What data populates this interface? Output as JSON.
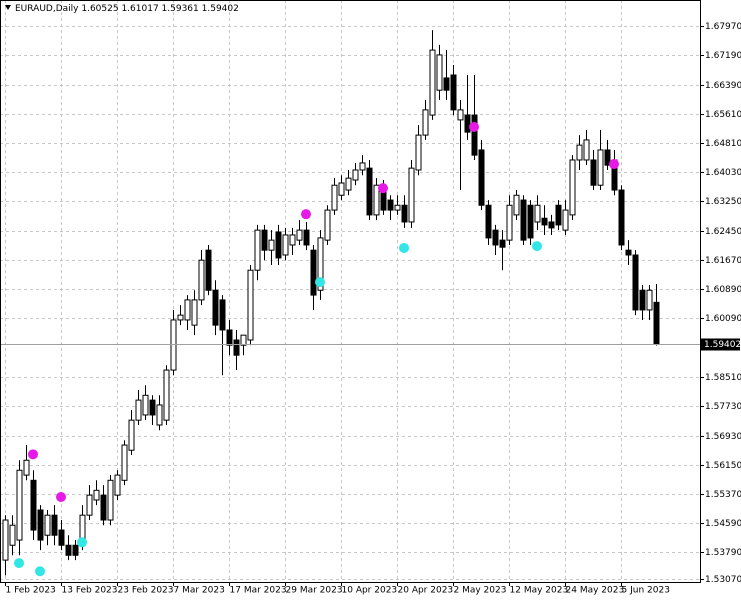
{
  "chart_data": {
    "type": "candlestick",
    "title": "EURAUD,Daily",
    "categories": [
      "1 Feb 2023",
      null,
      null,
      null,
      null,
      null,
      null,
      null,
      "13 Feb 2023",
      null,
      null,
      null,
      null,
      null,
      null,
      null,
      "23 Feb 2023",
      null,
      null,
      null,
      null,
      null,
      null,
      null,
      "7 Mar 2023",
      null,
      null,
      null,
      null,
      null,
      null,
      null,
      "17 Mar 2023",
      null,
      null,
      null,
      null,
      null,
      null,
      null,
      "29 Mar 2023",
      null,
      null,
      null,
      null,
      null,
      null,
      null,
      "10 Apr 2023",
      null,
      null,
      null,
      null,
      null,
      null,
      null,
      "20 Apr 2023",
      null,
      null,
      null,
      null,
      null,
      null,
      null,
      "2 May 2023",
      null,
      null,
      null,
      null,
      null,
      null,
      null,
      "12 May 2023",
      null,
      null,
      null,
      null,
      null,
      null,
      null,
      "24 May 2023",
      null,
      null,
      null,
      null,
      null,
      null,
      null,
      "5 Jun 2023",
      null,
      null,
      null,
      null,
      null
    ],
    "open": [
      1.5358,
      1.5398,
      1.5412,
      1.5587,
      1.5573,
      1.5493,
      1.5425,
      1.5479,
      1.5439,
      1.5398,
      1.5398,
      1.5398,
      1.5479,
      1.552,
      1.5533,
      1.5466,
      1.5533,
      1.5573,
      1.5654,
      1.5735,
      1.5749,
      1.5789,
      1.5722,
      1.5735,
      1.587,
      1.6005,
      1.6005,
      1.5991,
      1.6059,
      1.6193,
      1.6085,
      1.6059,
      1.5978,
      1.5951,
      1.5937,
      1.5951,
      1.6139,
      1.6247,
      1.6193,
      1.6242,
      1.618,
      1.6207,
      1.622,
      1.6247,
      1.6193,
      1.6085,
      1.622,
      1.6301,
      1.6341,
      1.6355,
      1.6382,
      1.6409,
      1.6414,
      1.6288,
      1.6368,
      1.6328,
      1.6301,
      1.6314,
      1.6269,
      1.6409,
      1.6503,
      1.6557,
      1.6624,
      1.6657,
      1.6665,
      1.6544,
      1.6557,
      1.6557,
      1.6463,
      1.6314,
      1.6247,
      1.622,
      1.622,
      1.6288,
      1.6328,
      1.6314,
      1.6269,
      1.6279,
      1.6269,
      1.6314,
      1.6247,
      1.6288,
      1.6436,
      1.6436,
      1.6436,
      1.6368,
      1.6463,
      1.6436,
      1.6355,
      1.6193,
      1.618,
      1.6085,
      1.6032,
      1.60525
    ],
    "high": [
      1.5479,
      1.5479,
      1.5627,
      1.5668,
      1.56,
      1.5506,
      1.5493,
      1.5506,
      1.5466,
      1.5425,
      1.5412,
      1.5506,
      1.556,
      1.5573,
      1.556,
      1.5587,
      1.56,
      1.5681,
      1.5762,
      1.5816,
      1.5829,
      1.5802,
      1.5802,
      1.5883,
      1.6032,
      1.6045,
      1.6072,
      1.6085,
      1.6193,
      1.6207,
      1.6112,
      1.6072,
      1.6005,
      1.5978,
      1.5964,
      1.6153,
      1.6261,
      1.6261,
      1.6247,
      1.6261,
      1.6253,
      1.6253,
      1.6274,
      1.6269,
      1.6207,
      1.6247,
      1.6314,
      1.6387,
      1.6395,
      1.6409,
      1.6428,
      1.6449,
      1.6436,
      1.6387,
      1.6382,
      1.6341,
      1.6341,
      1.6341,
      1.6436,
      1.653,
      1.6598,
      1.6786,
      1.6746,
      1.6732,
      1.6692,
      1.6598,
      1.6665,
      1.6665,
      1.649,
      1.6328,
      1.6261,
      1.6247,
      1.6341,
      1.6355,
      1.6341,
      1.6328,
      1.6341,
      1.6314,
      1.6288,
      1.6328,
      1.6328,
      1.6449,
      1.6503,
      1.6517,
      1.6463,
      1.6517,
      1.649,
      1.6463,
      1.6368,
      1.622,
      1.6193,
      1.6099,
      1.6099,
      1.61017
    ],
    "low": [
      1.5317,
      1.5371,
      1.5371,
      1.5573,
      1.5412,
      1.5385,
      1.5398,
      1.5398,
      1.5385,
      1.5358,
      1.5358,
      1.5385,
      1.5466,
      1.5506,
      1.5452,
      1.5452,
      1.552,
      1.556,
      1.5641,
      1.5722,
      1.5735,
      1.5722,
      1.5708,
      1.5722,
      1.5856,
      1.5991,
      1.5978,
      1.5964,
      1.6045,
      1.6072,
      1.5964,
      1.5856,
      1.591,
      1.587,
      1.591,
      1.5937,
      1.6112,
      1.6166,
      1.6153,
      1.6153,
      1.6166,
      1.618,
      1.6207,
      1.6193,
      1.6032,
      1.6059,
      1.6207,
      1.6288,
      1.6328,
      1.6341,
      1.6368,
      1.6395,
      1.6274,
      1.6274,
      1.6288,
      1.6274,
      1.6288,
      1.6253,
      1.6253,
      1.6395,
      1.649,
      1.6544,
      1.6598,
      1.6598,
      1.6557,
      1.6355,
      1.649,
      1.6436,
      1.6301,
      1.6207,
      1.618,
      1.6139,
      1.6207,
      1.6274,
      1.6207,
      1.6207,
      1.6247,
      1.6234,
      1.6234,
      1.6247,
      1.6234,
      1.6274,
      1.6409,
      1.6422,
      1.6355,
      1.6355,
      1.6409,
      1.6341,
      1.6193,
      1.6153,
      1.6018,
      1.6005,
      1.6005,
      1.59361
    ],
    "close": [
      1.5466,
      1.5452,
      1.56,
      1.5627,
      1.5439,
      1.5412,
      1.5479,
      1.5425,
      1.5398,
      1.5371,
      1.5371,
      1.5479,
      1.5533,
      1.5546,
      1.5466,
      1.5573,
      1.5587,
      1.5668,
      1.5735,
      1.5789,
      1.5802,
      1.5749,
      1.5776,
      1.587,
      1.6005,
      1.6018,
      1.6059,
      1.6059,
      1.6166,
      1.6085,
      1.5991,
      1.5978,
      1.5937,
      1.591,
      1.5964,
      1.6139,
      1.6247,
      1.6193,
      1.622,
      1.6172,
      1.6234,
      1.6234,
      1.6247,
      1.6207,
      1.6072,
      1.6226,
      1.6301,
      1.6368,
      1.6374,
      1.6387,
      1.6409,
      1.6428,
      1.6288,
      1.6368,
      1.6301,
      1.6301,
      1.6314,
      1.6269,
      1.6414,
      1.6503,
      1.6571,
      1.6732,
      1.6719,
      1.6624,
      1.6571,
      1.6571,
      1.6511,
      1.6449,
      1.6314,
      1.6226,
      1.6207,
      1.6201,
      1.6314,
      1.6341,
      1.622,
      1.6226,
      1.6314,
      1.6261,
      1.6253,
      1.6261,
      1.6301,
      1.6436,
      1.6476,
      1.649,
      1.6368,
      1.6463,
      1.6422,
      1.6355,
      1.6207,
      1.618,
      1.6032,
      1.6032,
      1.6085,
      1.59402
    ],
    "up_color": "#ffffff",
    "down_color": "#000000",
    "wick_color": "#000000",
    "markers": [
      {
        "color": "#e619e6",
        "x": [
          4,
          8,
          43,
          54,
          67,
          87
        ],
        "values": [
          1.5643,
          1.5528,
          1.629,
          1.636,
          1.6525,
          1.6425
        ]
      },
      {
        "color": "#33e6e6",
        "x": [
          2,
          5,
          11,
          45,
          57,
          76
        ],
        "values": [
          1.535,
          1.5328,
          1.5406,
          1.6107,
          1.6199,
          1.6204
        ]
      }
    ],
    "ylim": [
      1.5299,
      1.6867
    ],
    "yticks": [
      {
        "value": 1.6797,
        "label": "1.67970"
      },
      {
        "value": 1.6719,
        "label": "1.67190"
      },
      {
        "value": 1.6639,
        "label": "1.66390"
      },
      {
        "value": 1.6561,
        "label": "1.65610"
      },
      {
        "value": 1.6481,
        "label": "1.64810"
      },
      {
        "value": 1.6403,
        "label": "1.64030"
      },
      {
        "value": 1.6325,
        "label": "1.63250"
      },
      {
        "value": 1.6245,
        "label": "1.62450"
      },
      {
        "value": 1.6167,
        "label": "1.61670"
      },
      {
        "value": 1.6089,
        "label": "1.60890"
      },
      {
        "value": 1.6009,
        "label": "1.60090"
      },
      {
        "value": 1.5851,
        "label": "1.58510"
      },
      {
        "value": 1.5773,
        "label": "1.57730"
      },
      {
        "value": 1.5693,
        "label": "1.56930"
      },
      {
        "value": 1.5615,
        "label": "1.56150"
      },
      {
        "value": 1.5537,
        "label": "1.55370"
      },
      {
        "value": 1.5459,
        "label": "1.54590"
      },
      {
        "value": 1.5379,
        "label": "1.53790"
      },
      {
        "value": 1.5307,
        "label": "1.53070"
      }
    ],
    "grid": true
  }
}
